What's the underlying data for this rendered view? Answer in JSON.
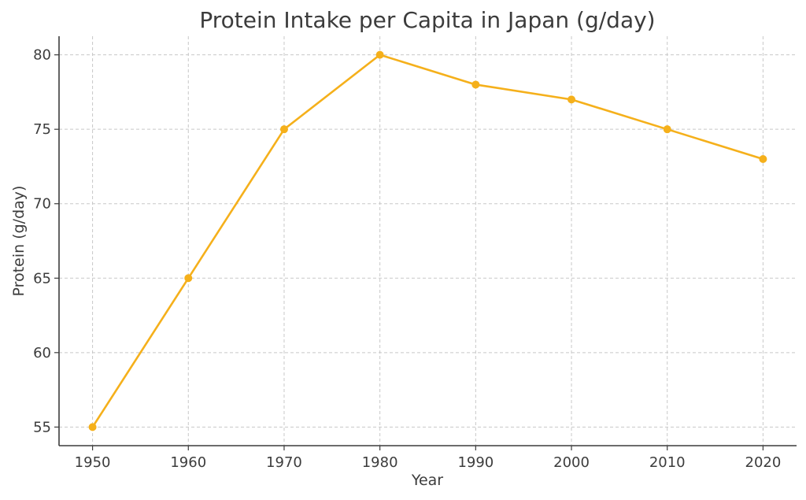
{
  "chart_data": {
    "type": "line",
    "title": "Protein Intake per Capita in Japan (g/day)",
    "xlabel": "Year",
    "ylabel": "Protein (g/day)",
    "x": [
      1950,
      1960,
      1970,
      1980,
      1990,
      2000,
      2010,
      2020
    ],
    "series": [
      {
        "values": [
          55,
          65,
          75,
          80,
          78,
          77,
          75,
          73
        ],
        "color": "#f5b01b"
      }
    ],
    "xlim": [
      1946.5,
      2023.5
    ],
    "ylim": [
      53.75,
      81.25
    ],
    "xticks": [
      "1950",
      "1960",
      "1970",
      "1980",
      "1990",
      "2000",
      "2010",
      "2020"
    ],
    "yticks": [
      "55",
      "60",
      "65",
      "70",
      "75",
      "80"
    ],
    "grid": true,
    "legend": "none"
  }
}
